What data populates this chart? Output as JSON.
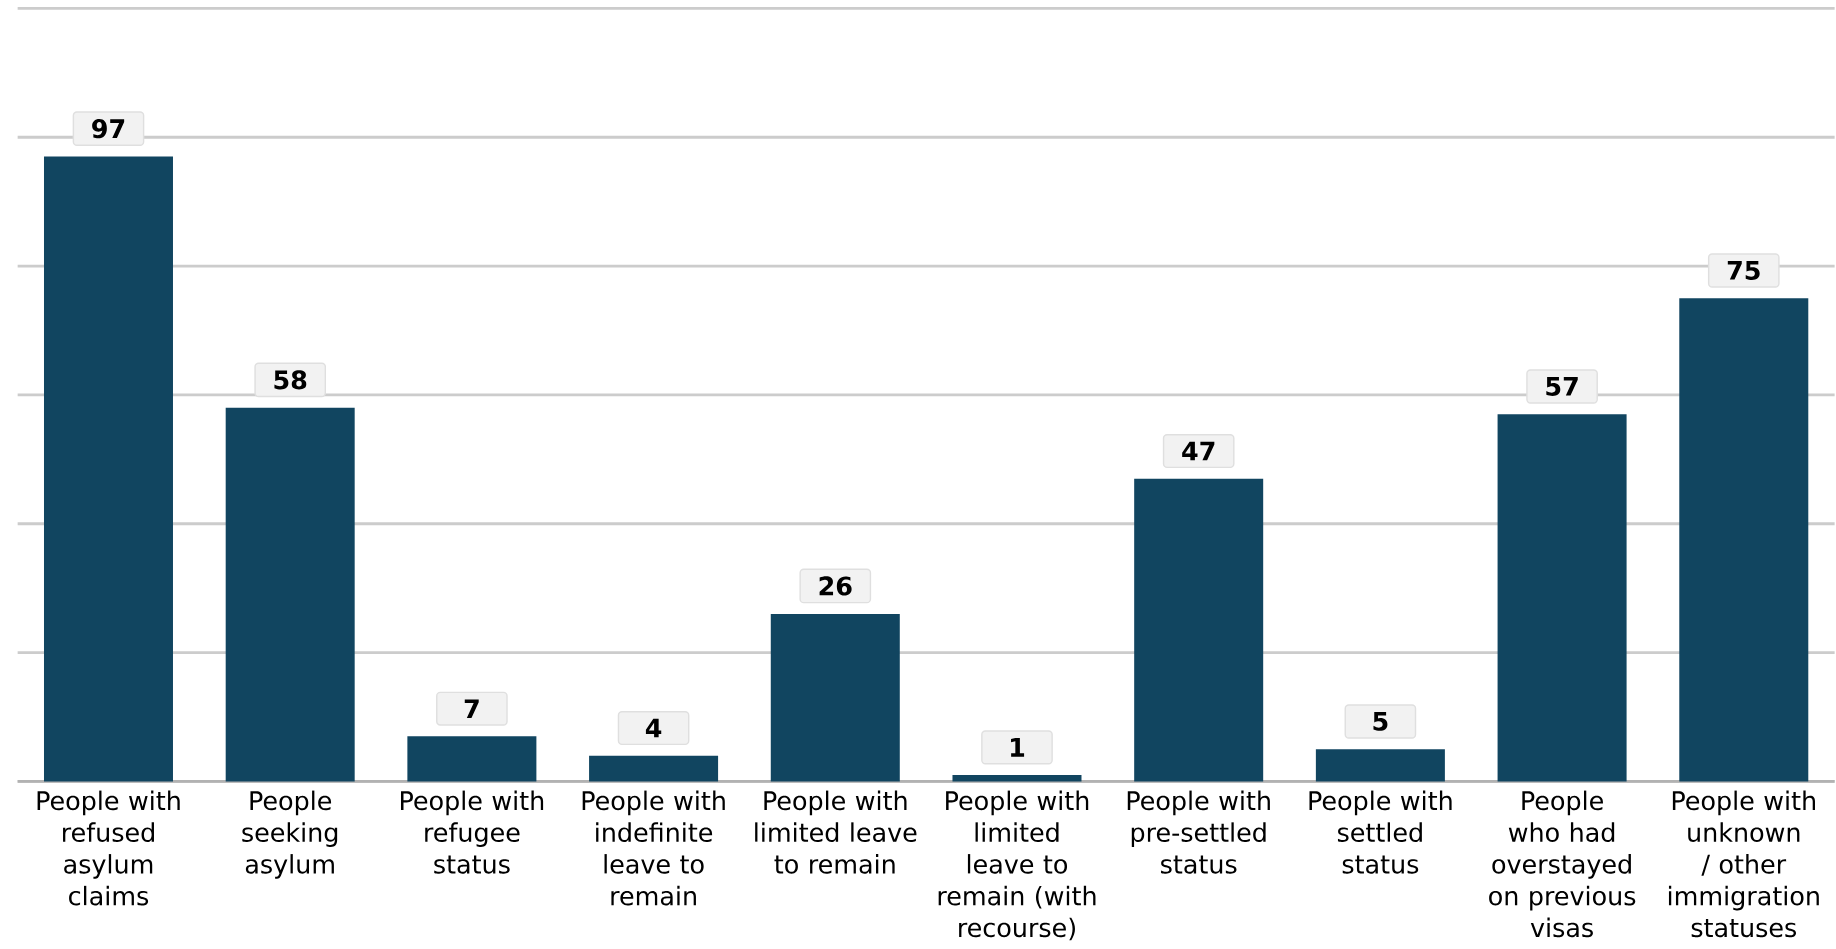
{
  "chart_data": {
    "type": "bar",
    "categories": [
      "People with refused asylum claims",
      "People seeking asylum",
      "People with refugee status",
      "People with indefinite leave to remain",
      "People with limited leave to remain",
      "People with limited leave to remain (with recourse)",
      "People with pre-settled status",
      "People with settled status",
      "People who had overstayed on previous visas",
      "People with unknown / other immigration statuses"
    ],
    "values": [
      97,
      58,
      7,
      4,
      26,
      1,
      47,
      5,
      57,
      75
    ],
    "color": "#114560",
    "ylim": [
      0,
      120
    ],
    "yticks": [
      {
        "value": 0,
        "label": null
      },
      {
        "value": 20,
        "label": null
      },
      {
        "value": 40,
        "label": null
      },
      {
        "value": 60,
        "label": null
      },
      {
        "value": 80,
        "label": null
      },
      {
        "value": 100,
        "label": null
      },
      {
        "value": 120,
        "label": null
      }
    ],
    "tick_labels": "x",
    "grid": "y",
    "data_labels": true
  }
}
